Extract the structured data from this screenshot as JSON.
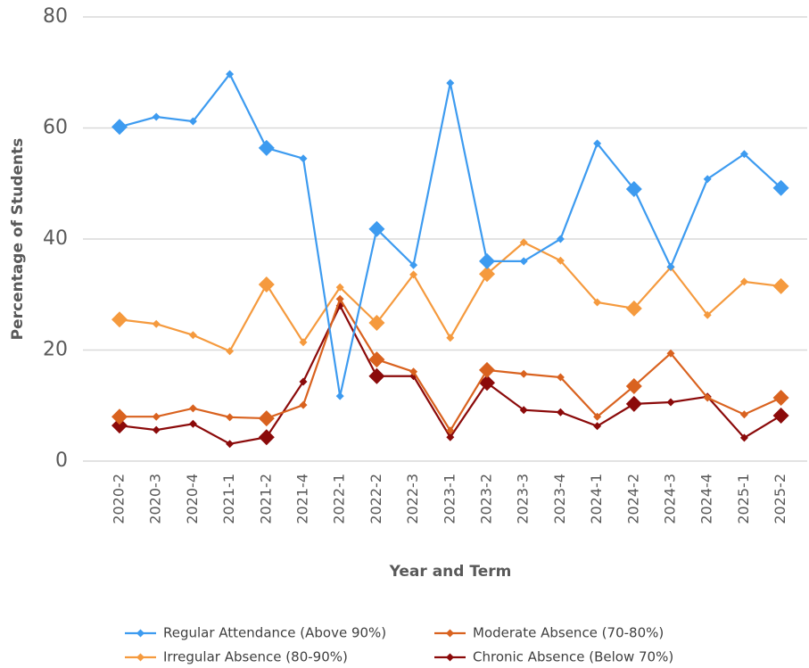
{
  "chart_data": {
    "type": "line",
    "x_label": "Year and Term",
    "y_label": "Percentage of Students",
    "categories": [
      "2020-2",
      "2020-3",
      "2020-4",
      "2021-1",
      "2021-2",
      "2021-4",
      "2022-1",
      "2022-2",
      "2022-3",
      "2023-1",
      "2023-2",
      "2023-3",
      "2023-4",
      "2024-1",
      "2024-2",
      "2024-3",
      "2024-4",
      "2025-1",
      "2025-2"
    ],
    "series": [
      {
        "name": "Regular Attendance (Above 90%)",
        "color": "#3d9bf0",
        "values": [
          60.2,
          62.0,
          61.2,
          69.7,
          56.4,
          54.5,
          11.7,
          41.8,
          35.3,
          68.1,
          36.0,
          36.0,
          40.0,
          57.2,
          49.0,
          35.0,
          50.8,
          55.3,
          49.2
        ]
      },
      {
        "name": "Moderate Absence (70-80%)",
        "color": "#d9621f",
        "values": [
          8.0,
          8.0,
          9.5,
          7.9,
          7.7,
          10.1,
          29.2,
          18.3,
          16.1,
          5.5,
          16.4,
          15.7,
          15.1,
          8.0,
          13.5,
          19.4,
          11.4,
          8.4,
          11.4
        ]
      },
      {
        "name": "Irregular Absence (80-90%)",
        "color": "#f59a3e",
        "values": [
          25.5,
          24.7,
          22.7,
          19.8,
          31.8,
          21.4,
          31.3,
          24.9,
          33.6,
          22.2,
          33.7,
          39.4,
          36.1,
          28.6,
          27.5,
          34.9,
          26.3,
          32.3,
          31.5
        ]
      },
      {
        "name": "Chronic Absence (Below 70%)",
        "color": "#8b0a0a",
        "values": [
          6.4,
          5.6,
          6.7,
          3.1,
          4.3,
          14.3,
          28.0,
          15.3,
          15.3,
          4.3,
          14.1,
          9.2,
          8.8,
          6.3,
          10.3,
          10.6,
          11.6,
          4.2,
          8.2
        ]
      }
    ],
    "ylim": [
      0,
      80
    ],
    "yticks": [
      0,
      20,
      40,
      60,
      80
    ],
    "grid": true,
    "legend": "bottom"
  }
}
